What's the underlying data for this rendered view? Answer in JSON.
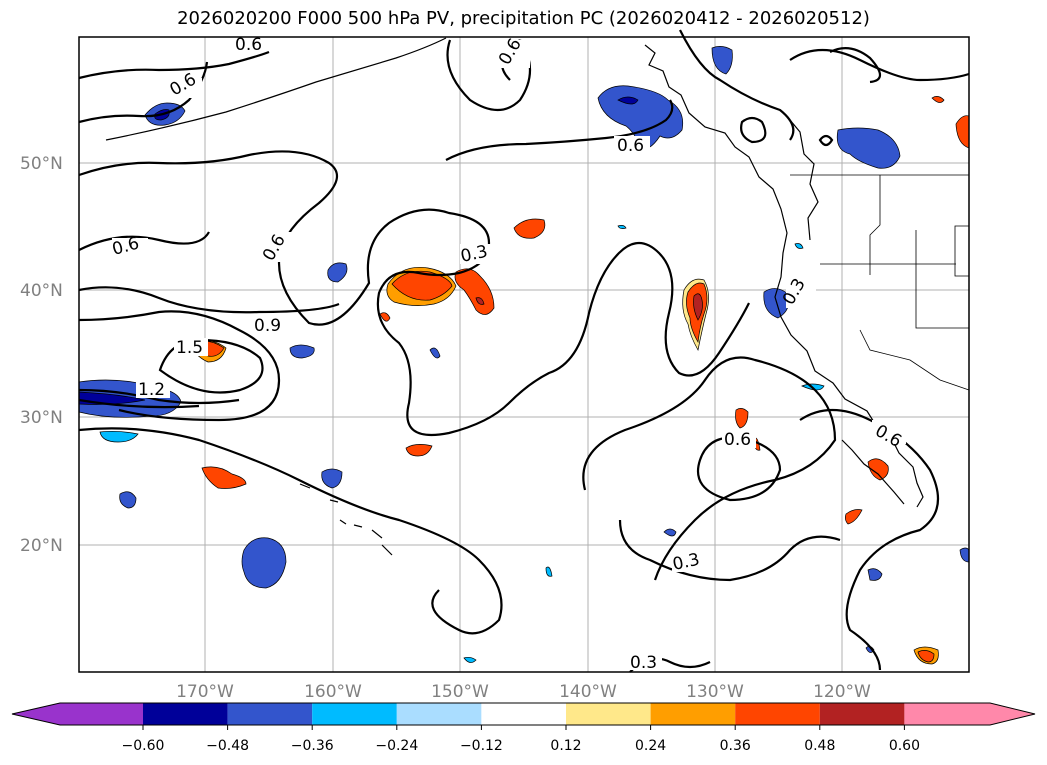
{
  "title": "2026020200 F000 500 hPa PV, precipitation PC (2026020412 - 2026020512)",
  "map": {
    "lat_labels": [
      "50°N",
      "40°N",
      "30°N",
      "20°N"
    ],
    "lon_labels": [
      "170°W",
      "160°W",
      "150°W",
      "140°W",
      "130°W",
      "120°W"
    ]
  },
  "contour_labels": [
    "0.6",
    "0.6",
    "0.6",
    "0.6",
    "0.6",
    "0.6",
    "0.3",
    "0.9",
    "1.5",
    "1.2",
    "0.3",
    "0.6",
    "0.6",
    "0.3",
    "0.3"
  ],
  "colorbar": {
    "ticks": [
      "−0.60",
      "−0.48",
      "−0.36",
      "−0.24",
      "−0.12",
      "0.12",
      "0.24",
      "0.36",
      "0.48",
      "0.60"
    ],
    "colors": [
      "#9933cc",
      "#000099",
      "#3355cc",
      "#00bbff",
      "#aaddff",
      "#ffffff",
      "#ffe88a",
      "#ff9e00",
      "#ff4500",
      "#b22222",
      "#ff88aa"
    ]
  }
}
